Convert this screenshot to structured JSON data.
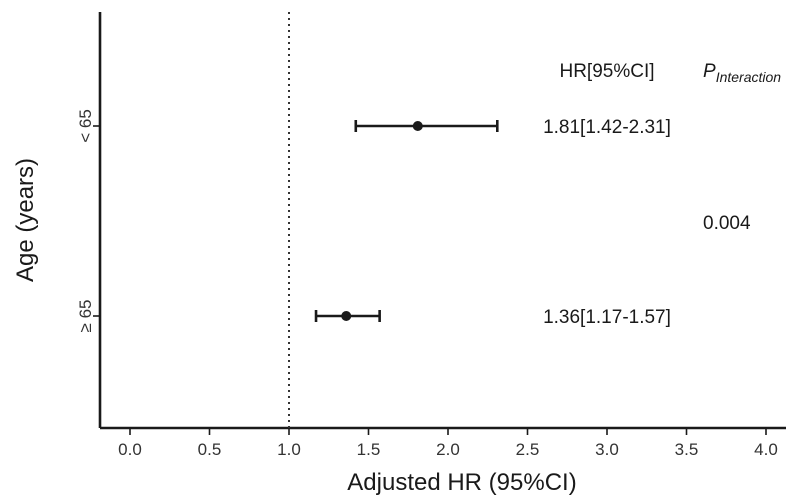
{
  "chart_data": {
    "type": "forest",
    "xlabel": "Adjusted HR (95%CI)",
    "ylabel": "Age (years)",
    "xlim": [
      -0.15,
      4.1
    ],
    "xticks": [
      "0.0",
      "0.5",
      "1.0",
      "1.5",
      "2.0",
      "2.5",
      "3.0",
      "3.5",
      "4.0"
    ],
    "reference_line": 1.0,
    "table_header": "HR[95%CI]",
    "p_header_main": "P",
    "p_header_sub": "Interaction",
    "p_value": "0.004",
    "rows": [
      {
        "label": "< 65",
        "hr": 1.81,
        "lower": 1.42,
        "upper": 2.31,
        "text": "1.81[1.42-2.31]"
      },
      {
        "label": "≥ 65",
        "hr": 1.36,
        "lower": 1.17,
        "upper": 1.57,
        "text": "1.36[1.17-1.57]"
      }
    ]
  }
}
